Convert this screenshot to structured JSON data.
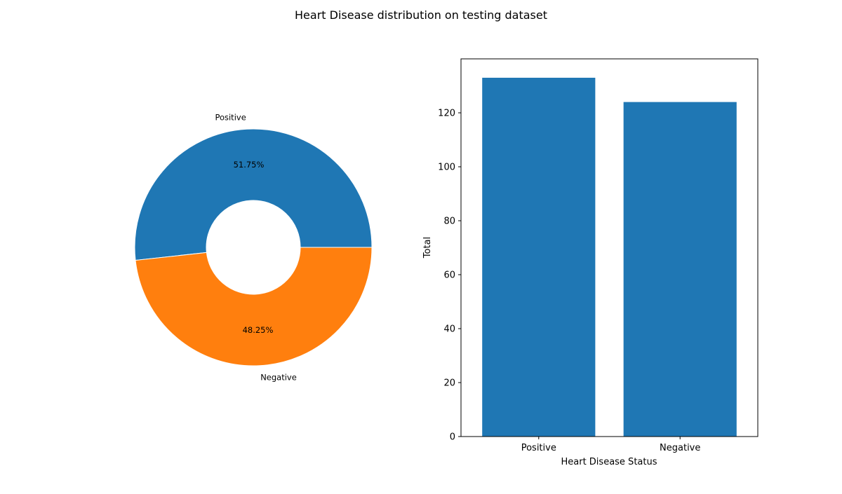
{
  "figure": {
    "suptitle": "Heart Disease distribution on testing dataset"
  },
  "chart_data": [
    {
      "type": "pie",
      "style": "donut",
      "categories": [
        "Positive",
        "Negative"
      ],
      "values": [
        51.75,
        48.25
      ],
      "value_labels": [
        "51.75%",
        "48.25%"
      ],
      "colors": [
        "#1f77b4",
        "#ff7f0e"
      ]
    },
    {
      "type": "bar",
      "categories": [
        "Positive",
        "Negative"
      ],
      "values": [
        133,
        124
      ],
      "colors": [
        "#1f77b4",
        "#1f77b4"
      ],
      "xlabel": "Heart Disease Status",
      "ylabel": "Total",
      "ylim": [
        0,
        140
      ],
      "yticks": [
        0,
        20,
        40,
        60,
        80,
        100,
        120
      ],
      "ytick_labels": [
        "0",
        "20",
        "40",
        "60",
        "80",
        "100",
        "120"
      ],
      "grid": false
    }
  ]
}
